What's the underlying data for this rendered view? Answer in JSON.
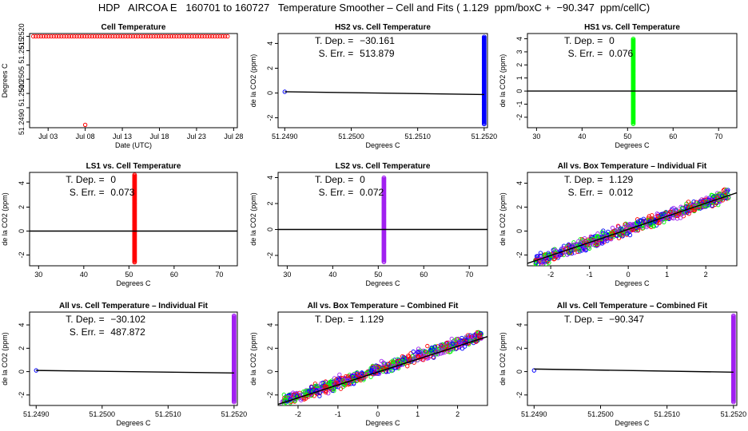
{
  "page": {
    "title": "HDP   AIRCOA E   160701 to 160727   Temperature Smoother – Cell and Fits ( 1.129  ppm/boxC +  −90.347  ppm/cellC)"
  },
  "chart_data": [
    {
      "type": "scatter",
      "name": "cell-temperature",
      "title": "Cell Temperature",
      "xlabel": "Date (UTC)",
      "ylabel": "Degrees C",
      "xlim": [
        0.5,
        28.5
      ],
      "ylim": [
        51.2488,
        51.2521
      ],
      "xticks": [
        3,
        8,
        13,
        18,
        23,
        28
      ],
      "xticklabels": [
        "Jul 03",
        "Jul 08",
        "Jul 13",
        "Jul 18",
        "Jul 23",
        "Jul 28"
      ],
      "yticks": [
        51.249,
        51.2495,
        51.25,
        51.2505,
        51.251,
        51.2515,
        51.252
      ],
      "yticklabels": [
        "51.2490",
        "",
        "51.2500",
        "51.2505",
        "",
        "51.2515",
        "51.2520"
      ],
      "series": [
        {
          "name": "cell",
          "color": "#ff0000",
          "kind": "hline",
          "x": [
            1,
            27.5
          ],
          "y": 51.252
        },
        {
          "name": "outlier",
          "color": "#ff0000",
          "points": [
            [
              8,
              51.2489
            ]
          ]
        }
      ],
      "annotations": []
    },
    {
      "type": "scatter",
      "name": "hs2-vs-cell",
      "title": "HS2 vs. Cell Temperature",
      "xlabel": "Degrees C",
      "ylabel": "de la CO2 (ppm)",
      "xlim": [
        51.2489,
        51.25205
      ],
      "ylim": [
        -2.8,
        4.8
      ],
      "xticks": [
        51.249,
        51.25,
        51.251,
        51.252
      ],
      "xticklabels": [
        "51.2490",
        "51.2500",
        "51.2510",
        "51.2520"
      ],
      "yticks": [
        -2,
        0,
        2,
        4
      ],
      "yticklabels": [
        "-2",
        "0",
        "2",
        "4"
      ],
      "series": [
        {
          "name": "HS2",
          "color": "#0000ff",
          "kind": "column",
          "x": 51.252,
          "y": [
            -2.5,
            4.6
          ]
        },
        {
          "name": "HS2-low",
          "color": "#0000ff",
          "points": [
            [
              51.249,
              0.1
            ]
          ]
        }
      ],
      "fit": {
        "x": [
          51.249,
          51.252
        ],
        "y": [
          0.1,
          -0.12
        ]
      },
      "annotations": [
        {
          "label": "T. Dep. =",
          "value": "−30.161"
        },
        {
          "label": "S. Err. =",
          "value": "513.879"
        }
      ]
    },
    {
      "type": "scatter",
      "name": "hs1-vs-cell",
      "title": "HS1 vs. Cell Temperature",
      "xlabel": "Degrees C",
      "ylabel": "de la CO2 (ppm)",
      "xlim": [
        28,
        74
      ],
      "ylim": [
        -2.8,
        4.4
      ],
      "xticks": [
        30,
        40,
        50,
        60,
        70
      ],
      "xticklabels": [
        "30",
        "40",
        "50",
        "60",
        "70"
      ],
      "yticks": [
        -2,
        -1,
        0,
        1,
        2,
        3,
        4
      ],
      "yticklabels": [
        "-2",
        "-1",
        "0",
        "1",
        "2",
        "3",
        "4"
      ],
      "series": [
        {
          "name": "HS1",
          "color": "#00ff00",
          "kind": "column",
          "x": 51.25,
          "y": [
            -2.5,
            4.0
          ]
        }
      ],
      "fit": {
        "x": [
          28,
          74
        ],
        "y": [
          0,
          0
        ]
      },
      "annotations": [
        {
          "label": "T. Dep. =",
          "value": "0"
        },
        {
          "label": "S. Err. =",
          "value": "0.076"
        }
      ]
    },
    {
      "type": "scatter",
      "name": "ls1-vs-cell",
      "title": "LS1 vs. Cell Temperature",
      "xlabel": "Degrees C",
      "ylabel": "de la CO2 (ppm)",
      "xlim": [
        28,
        74
      ],
      "ylim": [
        -2.9,
        4.9
      ],
      "xticks": [
        30,
        40,
        50,
        60,
        70
      ],
      "xticklabels": [
        "30",
        "40",
        "50",
        "60",
        "70"
      ],
      "yticks": [
        -2,
        0,
        2,
        4
      ],
      "yticklabels": [
        "-2",
        "0",
        "2",
        "4"
      ],
      "series": [
        {
          "name": "LS1",
          "color": "#ff0000",
          "kind": "column",
          "x": 51.25,
          "y": [
            -2.6,
            4.7
          ]
        }
      ],
      "fit": {
        "x": [
          28,
          74
        ],
        "y": [
          0,
          0
        ]
      },
      "annotations": [
        {
          "label": "T. Dep. =",
          "value": "0"
        },
        {
          "label": "S. Err. =",
          "value": "0.073"
        }
      ]
    },
    {
      "type": "scatter",
      "name": "ls2-vs-cell",
      "title": "LS2 vs. Cell Temperature",
      "xlabel": "Degrees C",
      "ylabel": "de la CO2 (ppm)",
      "xlim": [
        28,
        74
      ],
      "ylim": [
        -2.8,
        4.4
      ],
      "xticks": [
        30,
        40,
        50,
        60,
        70
      ],
      "xticklabels": [
        "30",
        "40",
        "50",
        "60",
        "70"
      ],
      "yticks": [
        -2,
        0,
        2,
        4
      ],
      "yticklabels": [
        "-2",
        "0",
        "2",
        "4"
      ],
      "series": [
        {
          "name": "LS2",
          "color": "#a020f0",
          "kind": "column",
          "x": 51.25,
          "y": [
            -2.5,
            4.0
          ]
        }
      ],
      "fit": {
        "x": [
          28,
          74
        ],
        "y": [
          0,
          0
        ]
      },
      "annotations": [
        {
          "label": "T. Dep. =",
          "value": "0"
        },
        {
          "label": "S. Err. =",
          "value": "0.072"
        }
      ]
    },
    {
      "type": "scatter",
      "name": "all-vs-box-individual",
      "title": "All vs. Box Temperature – Individual Fit",
      "xlabel": "Degrees C",
      "ylabel": "de la CO2 (ppm)",
      "xlim": [
        -2.6,
        2.8
      ],
      "ylim": [
        -2.9,
        4.9
      ],
      "xticks": [
        -2,
        -1,
        0,
        1,
        2
      ],
      "xticklabels": [
        "-2",
        "-1",
        "0",
        "1",
        "2"
      ],
      "yticks": [
        -2,
        0,
        2,
        4
      ],
      "yticklabels": [
        "-2",
        "0",
        "2",
        "4"
      ],
      "series": [
        {
          "name": "cloud",
          "kind": "cloud",
          "colors": [
            "#ff0000",
            "#0000ff",
            "#00ff00",
            "#a020f0"
          ],
          "slope": 1.129,
          "spread": 0.8,
          "xrange": [
            -2.4,
            2.6
          ]
        }
      ],
      "fit": {
        "x": [
          -2.6,
          2.8
        ],
        "y": [
          -2.7,
          3.2
        ]
      },
      "annotations": [
        {
          "label": "T. Dep. =",
          "value": "1.129"
        },
        {
          "label": "S. Err. =",
          "value": "0.012"
        }
      ]
    },
    {
      "type": "scatter",
      "name": "all-vs-cell-individual",
      "title": "All vs. Cell Temperature – Individual Fit",
      "xlabel": "Degrees C",
      "ylabel": "de la CO2 (ppm)",
      "xlim": [
        51.2489,
        51.25205
      ],
      "ylim": [
        -2.9,
        5.1
      ],
      "xticks": [
        51.249,
        51.25,
        51.251,
        51.252
      ],
      "xticklabels": [
        "51.2490",
        "51.2500",
        "51.2510",
        "51.2520"
      ],
      "yticks": [
        -2,
        0,
        2,
        4
      ],
      "yticklabels": [
        "-2",
        "0",
        "2",
        "4"
      ],
      "series": [
        {
          "name": "all",
          "color": "#a020f0",
          "kind": "column",
          "x": 51.252,
          "y": [
            -2.6,
            4.8
          ]
        },
        {
          "name": "all-low",
          "color": "#0000ff",
          "points": [
            [
              51.249,
              0.1
            ]
          ]
        }
      ],
      "fit": {
        "x": [
          51.249,
          51.252
        ],
        "y": [
          0.1,
          -0.12
        ]
      },
      "annotations": [
        {
          "label": "T. Dep. =",
          "value": "−30.102"
        },
        {
          "label": "S. Err. =",
          "value": "487.872"
        }
      ]
    },
    {
      "type": "scatter",
      "name": "all-vs-box-combined",
      "title": "All vs. Box Temperature – Combined Fit",
      "xlabel": "Degrees C",
      "ylabel": "de la CO2 (ppm)",
      "xlim": [
        -2.5,
        2.75
      ],
      "ylim": [
        -2.9,
        5.1
      ],
      "xticks": [
        -2,
        -1,
        0,
        1,
        2
      ],
      "xticklabels": [
        "-2",
        "-1",
        "0",
        "1",
        "2"
      ],
      "yticks": [
        -2,
        0,
        2,
        4
      ],
      "yticklabels": [
        "-2",
        "0",
        "2",
        "4"
      ],
      "series": [
        {
          "name": "cloud",
          "kind": "cloud",
          "colors": [
            "#ff0000",
            "#0000ff",
            "#00ff00",
            "#a020f0"
          ],
          "slope": 1.129,
          "spread": 0.8,
          "xrange": [
            -2.4,
            2.6
          ]
        }
      ],
      "fit": {
        "x": [
          -2.5,
          2.75
        ],
        "y": [
          -2.8,
          3.0
        ]
      },
      "annotations": [
        {
          "label": "T. Dep. =",
          "value": "1.129"
        }
      ]
    },
    {
      "type": "scatter",
      "name": "all-vs-cell-combined",
      "title": "All vs. Cell Temperature – Combined Fit",
      "xlabel": "Degrees C",
      "ylabel": "de la CO2 (ppm)",
      "xlim": [
        51.2489,
        51.25205
      ],
      "ylim": [
        -2.9,
        5.1
      ],
      "xticks": [
        51.249,
        51.25,
        51.251,
        51.252
      ],
      "xticklabels": [
        "51.2490",
        "51.2500",
        "51.2510",
        "51.2520"
      ],
      "yticks": [
        -2,
        0,
        2,
        4
      ],
      "yticklabels": [
        "-2",
        "0",
        "2",
        "4"
      ],
      "series": [
        {
          "name": "all",
          "color": "#a020f0",
          "kind": "column",
          "x": 51.252,
          "y": [
            -2.6,
            4.8
          ]
        },
        {
          "name": "all-low",
          "color": "#0000ff",
          "points": [
            [
              51.249,
              0.1
            ]
          ]
        }
      ],
      "fit": {
        "x": [
          51.249,
          51.252
        ],
        "y": [
          0.22,
          -0.05
        ]
      },
      "annotations": [
        {
          "label": "T. Dep. =",
          "value": "−90.347"
        }
      ]
    }
  ]
}
